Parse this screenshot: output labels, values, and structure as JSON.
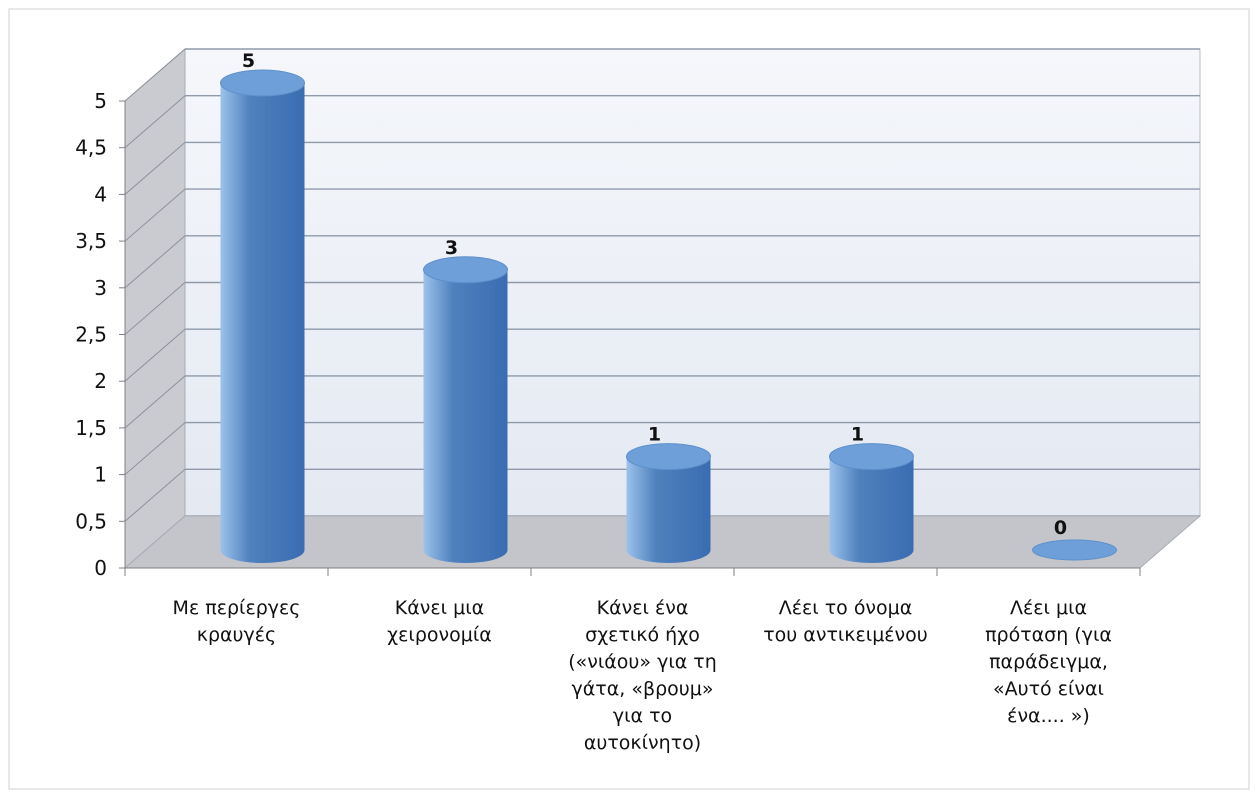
{
  "chart_data": {
    "type": "bar",
    "style": "3d-cylinder",
    "categories": [
      [
        "Με περίεργες",
        "κραυγές"
      ],
      [
        "Κάνει μια",
        "χειρονομία"
      ],
      [
        "Κάνει ένα",
        "σχετικό ήχο",
        "(«νιάου» για τη",
        "γάτα, «βρουμ»",
        "για το",
        "αυτοκίνητο)"
      ],
      [
        "Λέει το όνομα",
        "του αντικειμένου"
      ],
      [
        "Λέει  μια",
        "πρόταση (για",
        "παράδειγμα,",
        "«Αυτό είναι",
        "ένα.... »)"
      ]
    ],
    "values": [
      5,
      3,
      1,
      1,
      0
    ],
    "data_labels": [
      "5",
      "3",
      "1",
      "1",
      "0"
    ],
    "y_ticks": [
      "0",
      "0,5",
      "1",
      "1,5",
      "2",
      "2,5",
      "3",
      "3,5",
      "4",
      "4,5",
      "5"
    ],
    "ylim": [
      0,
      5
    ],
    "grid": true,
    "legend": "none",
    "title": "",
    "xlabel": "",
    "ylabel": "",
    "colors": {
      "bar": "#4f81bd",
      "bar_light": "#9cc2ec",
      "bar_dark": "#3a6cb2",
      "bar_top": "#6e9fd8",
      "wall": "#eef2f9",
      "wall_side": "#c9cbd0",
      "floor": "#c3c5ca",
      "grid": "#8e9aaa",
      "text": "#111111"
    }
  }
}
